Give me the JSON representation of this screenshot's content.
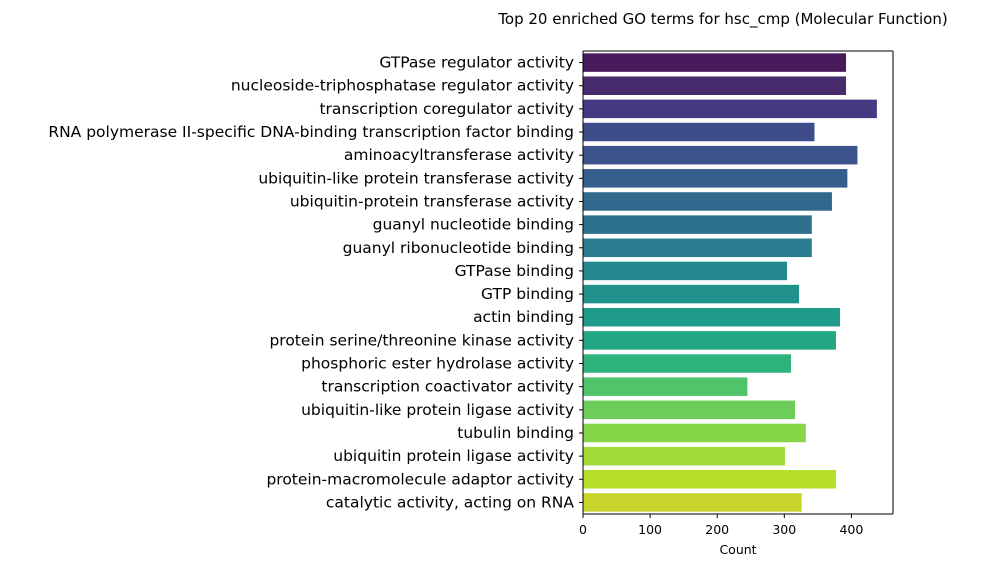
{
  "chart_data": {
    "type": "bar",
    "orientation": "horizontal",
    "title": "Top 20 enriched GO terms for hsc_cmp (Molecular Function)",
    "xlabel": "Count",
    "ylabel": "",
    "xlim": [
      0,
      462
    ],
    "xticks": [
      0,
      100,
      200,
      300,
      400
    ],
    "grid": false,
    "palette": "viridis",
    "categories": [
      "GTPase regulator activity",
      "nucleoside-triphosphatase regulator activity",
      "transcription coregulator activity",
      "RNA polymerase II-specific DNA-binding transcription factor binding",
      "aminoacyltransferase activity",
      "ubiquitin-like protein transferase activity",
      "ubiquitin-protein transferase activity",
      "guanyl nucleotide binding",
      "guanyl ribonucleotide binding",
      "GTPase binding",
      "GTP binding",
      "actin binding",
      "protein serine/threonine kinase activity",
      "phosphoric ester hydrolase activity",
      "transcription coactivator activity",
      "ubiquitin-like protein ligase activity",
      "tubulin binding",
      "ubiquitin protein ligase activity",
      "protein-macromolecule adaptor activity",
      "catalytic activity, acting on RNA"
    ],
    "values": [
      392,
      392,
      438,
      345,
      409,
      394,
      371,
      341,
      341,
      304,
      322,
      383,
      377,
      310,
      245,
      316,
      332,
      301,
      377,
      326
    ],
    "colors": [
      "#481a5b",
      "#482b6c",
      "#443a83",
      "#3e4c8a",
      "#3b528b",
      "#355e8d",
      "#31688e",
      "#2d718e",
      "#287c8e",
      "#24868e",
      "#21918c",
      "#1e9b8a",
      "#22a785",
      "#2eb37c",
      "#50c46a",
      "#6ccd5a",
      "#86d549",
      "#a2da37",
      "#b5de2b",
      "#c8d42c"
    ]
  }
}
